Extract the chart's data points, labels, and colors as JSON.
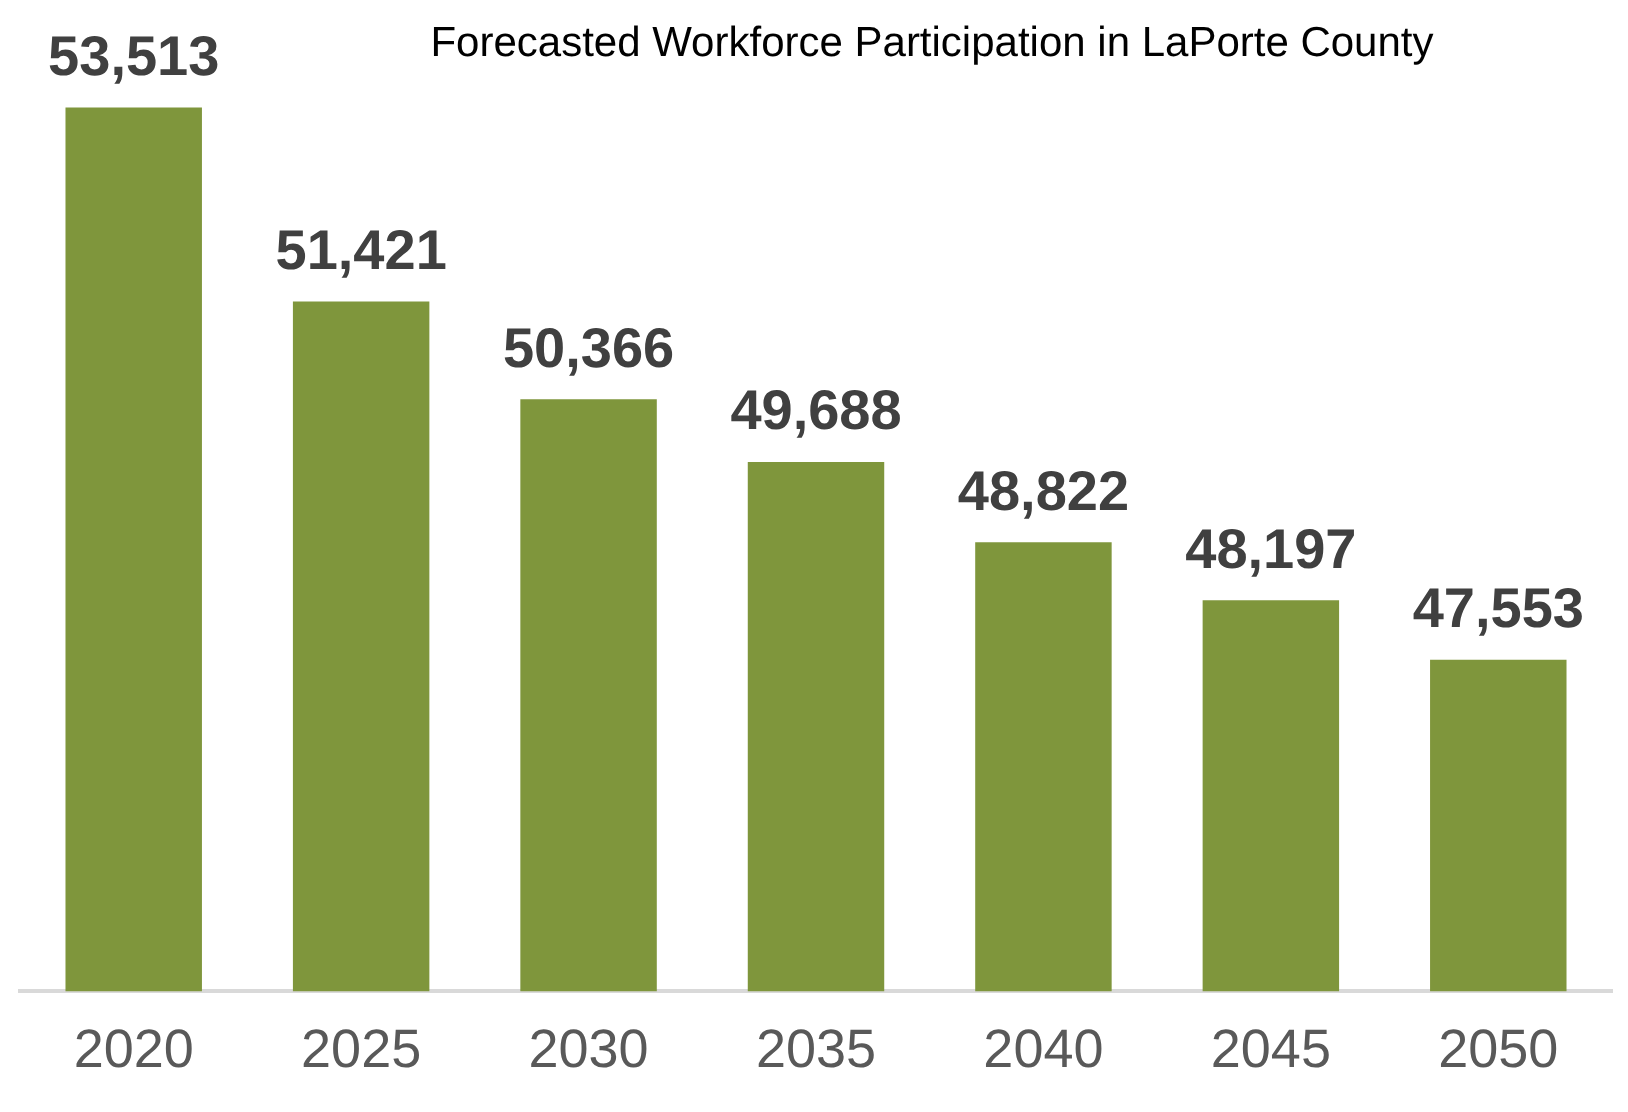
{
  "chart_data": {
    "type": "bar",
    "title": "Forecasted Workforce Participation in LaPorte County",
    "categories": [
      "2020",
      "2025",
      "2030",
      "2035",
      "2040",
      "2045",
      "2050"
    ],
    "values": [
      53513,
      51421,
      50366,
      49688,
      48822,
      48197,
      47553
    ],
    "value_labels": [
      "53,513",
      "51,421",
      "50,366",
      "49,688",
      "48,822",
      "48,197",
      "47,553"
    ],
    "color": "#7f963c",
    "grid": false,
    "legend": false,
    "tick_labels": "x"
  }
}
